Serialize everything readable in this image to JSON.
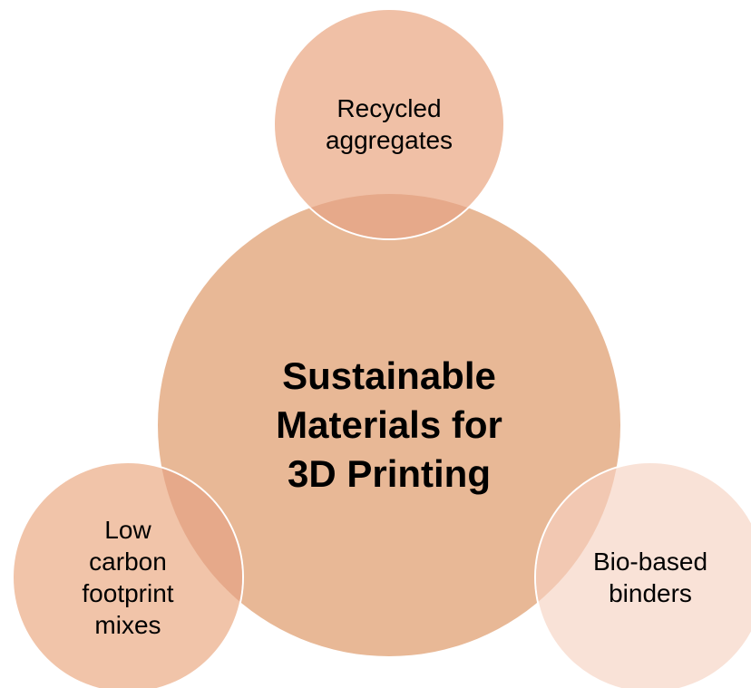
{
  "center": {
    "text": "Sustainable\nMaterials for\n3D Printing",
    "fill": "#E8B896"
  },
  "satellites": [
    {
      "id": "top",
      "text": "Recycled\naggregates",
      "fill": "#F0C0A6"
    },
    {
      "id": "left",
      "text": "Low\ncarbon\nfootprint\nmixes",
      "fill": "#F1C4A9"
    },
    {
      "id": "right",
      "text": "Bio-based\nbinders",
      "fill": "#F8DDD0"
    }
  ],
  "colors": {
    "overlap": "#E6A98A",
    "outline": "#ffffff"
  }
}
